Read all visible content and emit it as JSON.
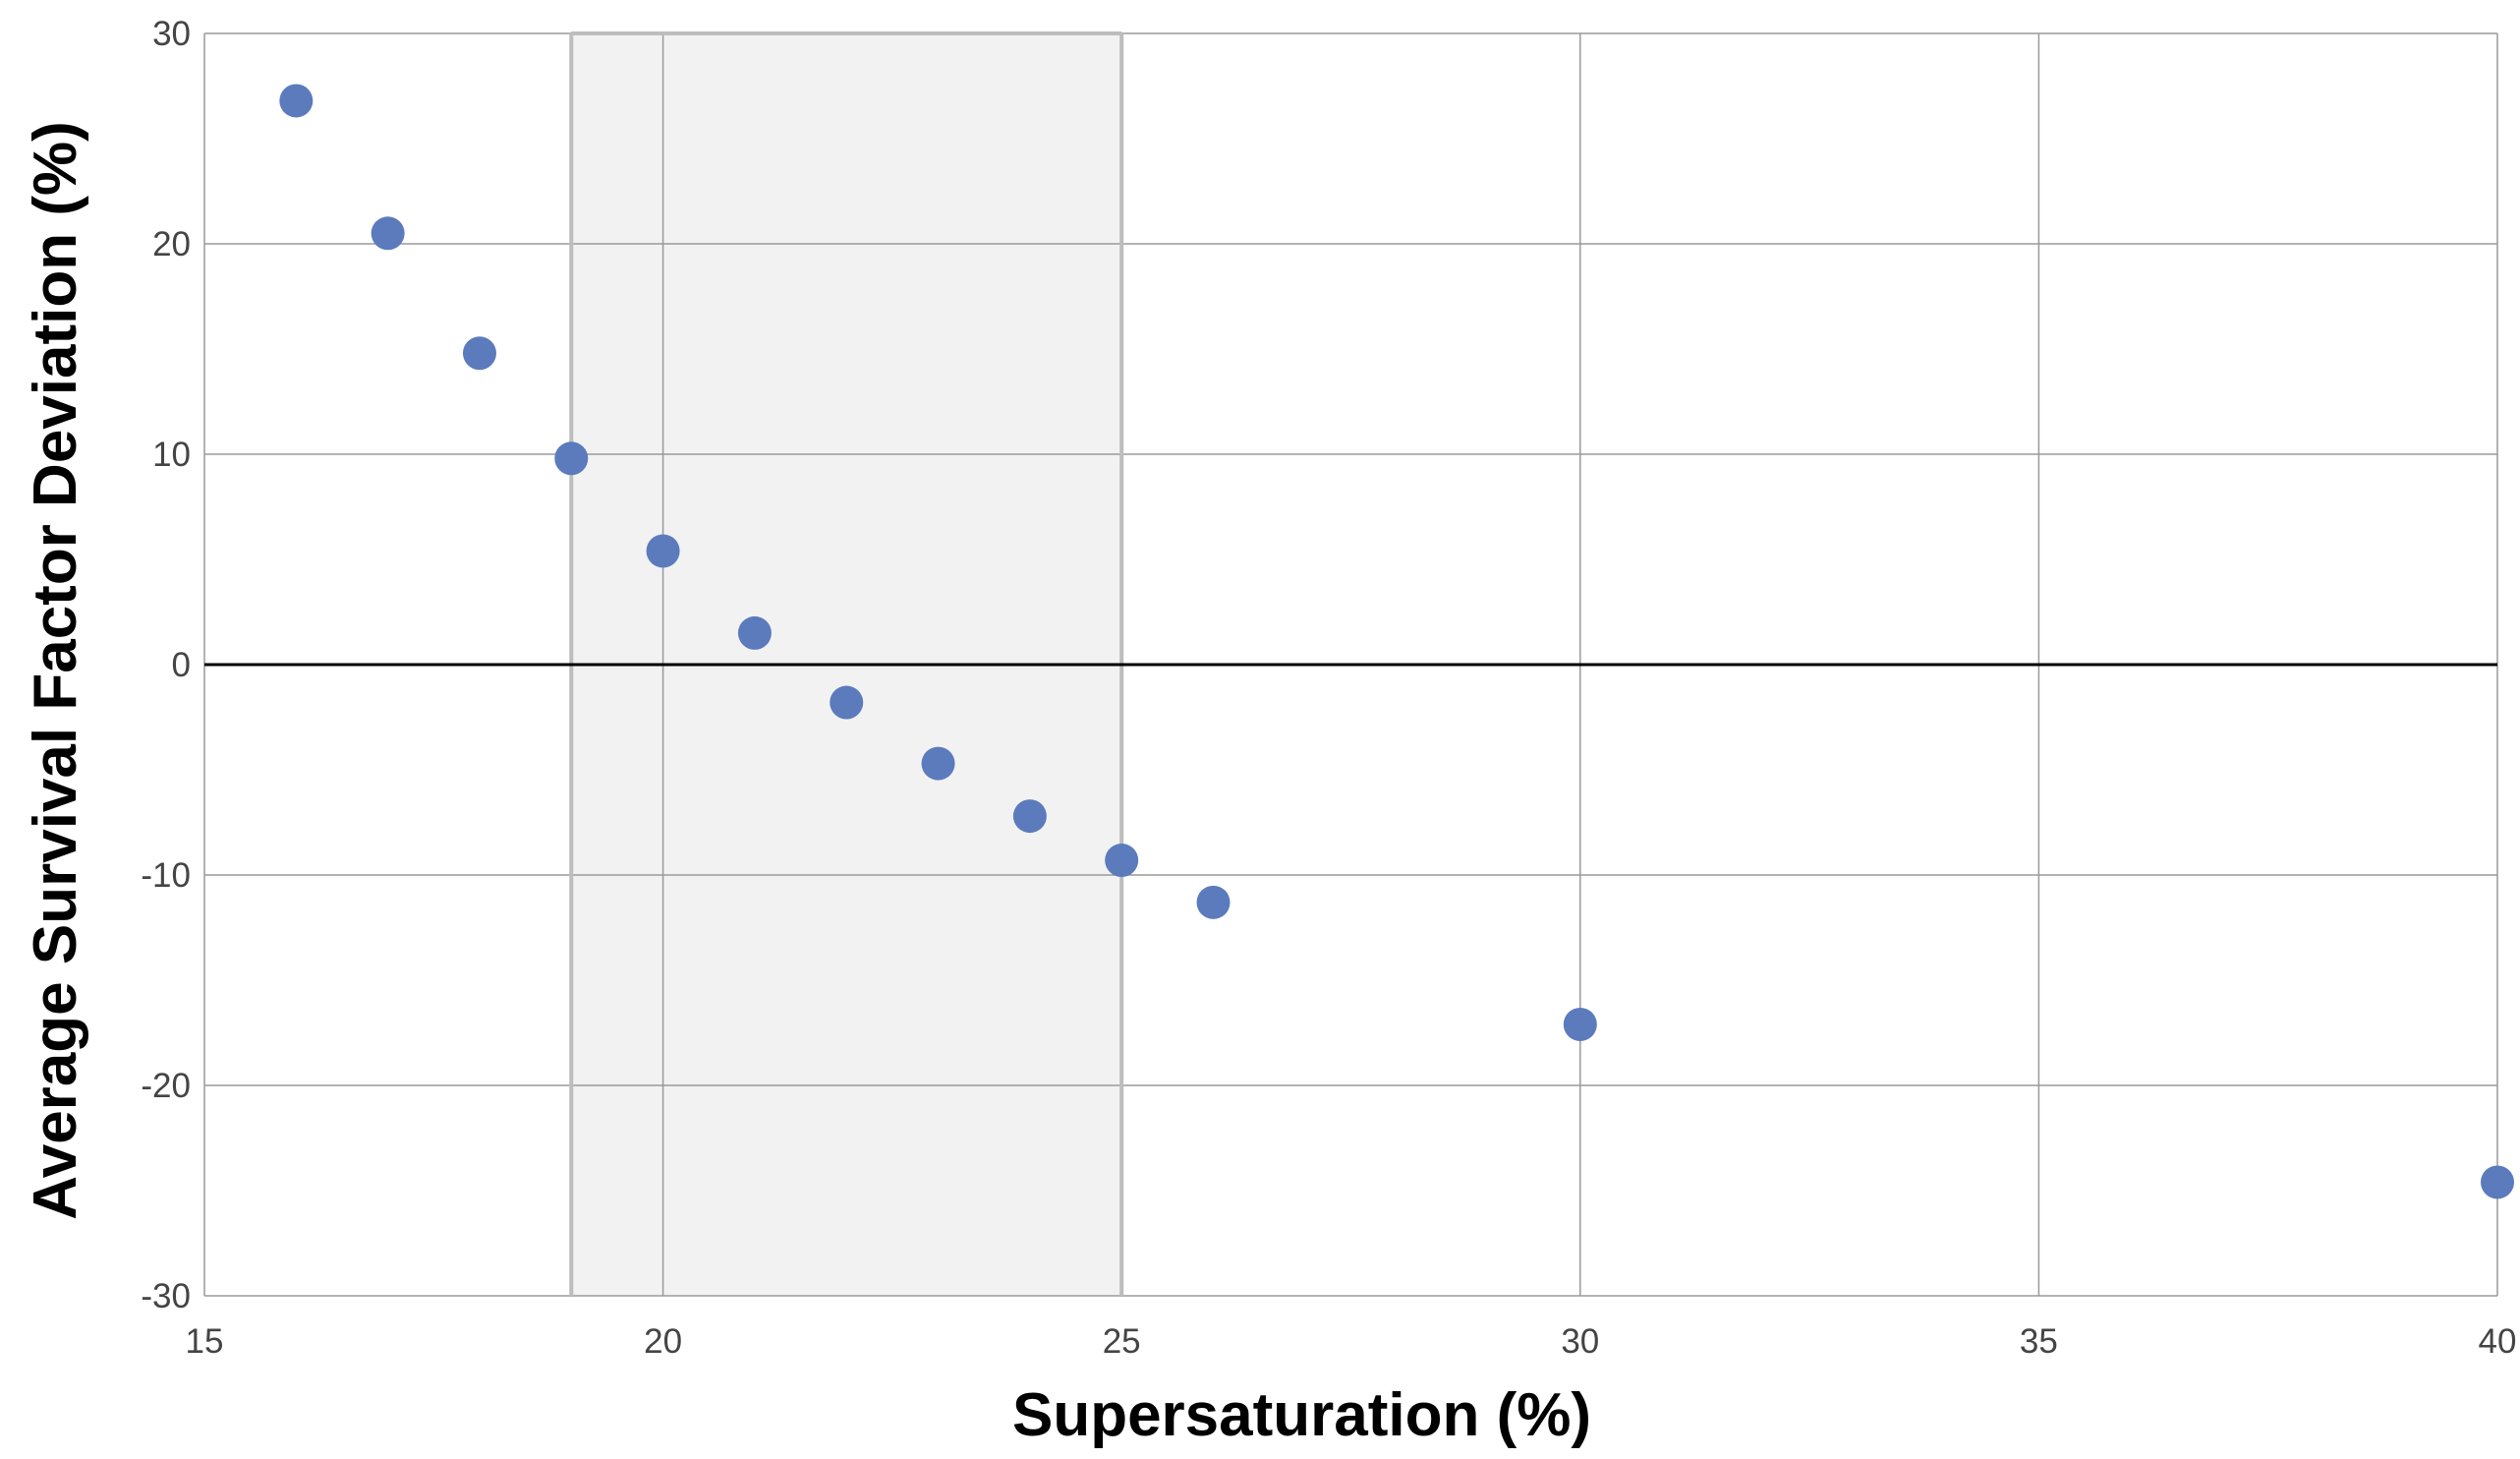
{
  "chart_data": {
    "type": "scatter",
    "title": "",
    "xlabel": "Supersaturation (%)",
    "ylabel": "Average Survival Factor Deviation (%)",
    "xlim": [
      15,
      40
    ],
    "ylim": [
      -30,
      30
    ],
    "xticks": [
      15,
      20,
      25,
      30,
      35,
      40
    ],
    "yticks": [
      -30,
      -20,
      -10,
      0,
      10,
      20,
      30
    ],
    "grid": true,
    "legend": "none",
    "highlight_band": {
      "x_from": 19,
      "x_to": 25
    },
    "reference_line_y": 0,
    "series": [
      {
        "color": "#5b7bbd",
        "x": [
          16,
          17,
          18,
          19,
          20,
          21,
          22,
          23,
          24,
          25,
          26,
          30,
          40
        ],
        "y": [
          26.8,
          20.5,
          14.8,
          9.8,
          5.4,
          1.5,
          -1.8,
          -4.7,
          -7.2,
          -9.3,
          -11.3,
          -17.1,
          -24.6
        ]
      }
    ],
    "colors": {
      "grid": "#9a9a9a",
      "band_fill": "#f2f2f2",
      "band_border": "#bdbdbd",
      "zero_line": "#000000"
    }
  }
}
